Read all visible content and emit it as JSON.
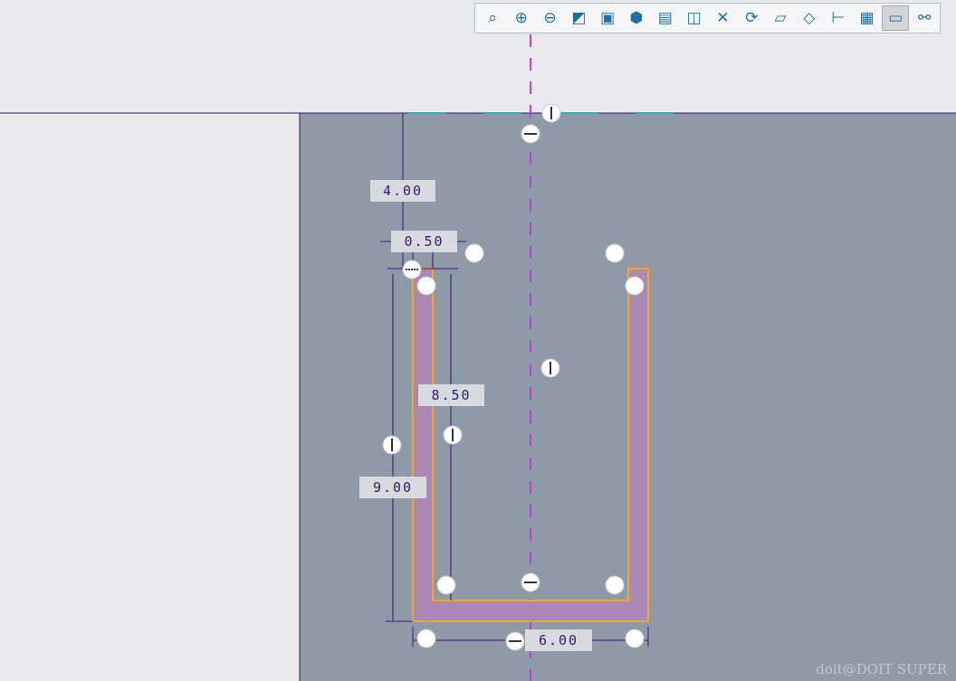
{
  "toolbar": {
    "items": [
      {
        "icon": "zoom-fit-icon",
        "glyph": "⌕"
      },
      {
        "icon": "zoom-in-icon",
        "glyph": "⊕"
      },
      {
        "icon": "zoom-out-icon",
        "glyph": "⊖"
      },
      {
        "icon": "sketch-view-icon",
        "glyph": "◩"
      },
      {
        "icon": "display-style-icon",
        "glyph": "▣"
      },
      {
        "icon": "saved-views-icon",
        "glyph": "⬢"
      },
      {
        "icon": "view-manager-icon",
        "glyph": "▤"
      },
      {
        "icon": "perspective-icon",
        "glyph": "◫"
      },
      {
        "icon": "datum-display-icon",
        "glyph": "✕"
      },
      {
        "icon": "spin-center-icon",
        "glyph": "⟳"
      },
      {
        "icon": "shaded-icon",
        "glyph": "▱"
      },
      {
        "icon": "wireframe-icon",
        "glyph": "◇"
      },
      {
        "icon": "dimension-display-icon",
        "glyph": "⊢"
      },
      {
        "icon": "constraint-display-icon",
        "glyph": "▦"
      },
      {
        "icon": "grid-display-icon",
        "glyph": "▭"
      },
      {
        "icon": "vertex-display-icon",
        "glyph": "⚯"
      }
    ],
    "active_index": 14
  },
  "dimensions": {
    "d_top": "4.00",
    "d_thickness": "0.50",
    "d_inner_height": "8.50",
    "d_outer_height": "9.00",
    "d_width": "6.00"
  },
  "colors": {
    "background": "#8e9aa8",
    "section_fill": "#ab87b5",
    "outline": "#f5a623",
    "centerline": "#b63fd6",
    "dimension_line": "#3a1670"
  },
  "watermark": "doit@DOIT SUPER"
}
